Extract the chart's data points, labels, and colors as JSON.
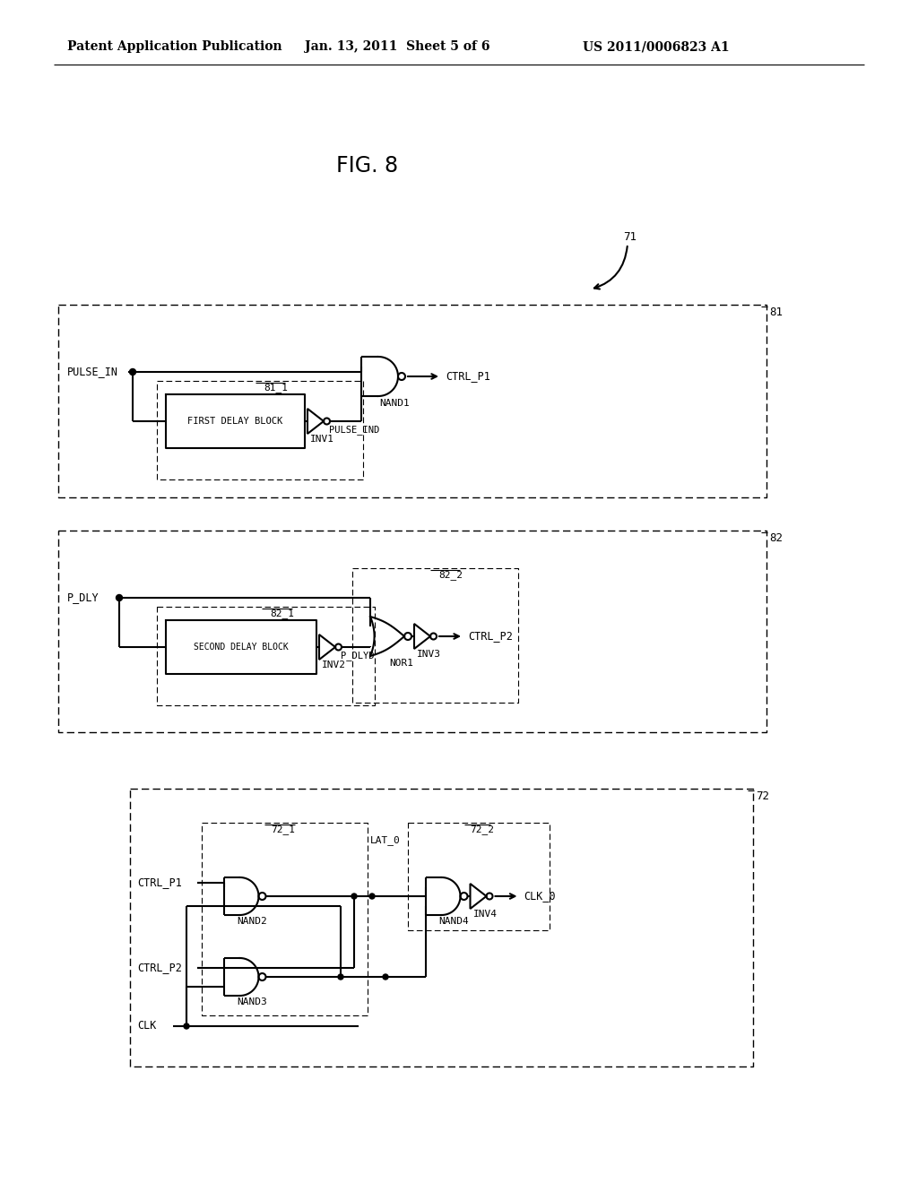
{
  "header_left": "Patent Application Publication",
  "header_center": "Jan. 13, 2011  Sheet 5 of 6",
  "header_right": "US 2011/0006823 A1",
  "fig_title": "FIG. 8",
  "background_color": "#ffffff",
  "line_color": "#000000",
  "text_color": "#000000"
}
